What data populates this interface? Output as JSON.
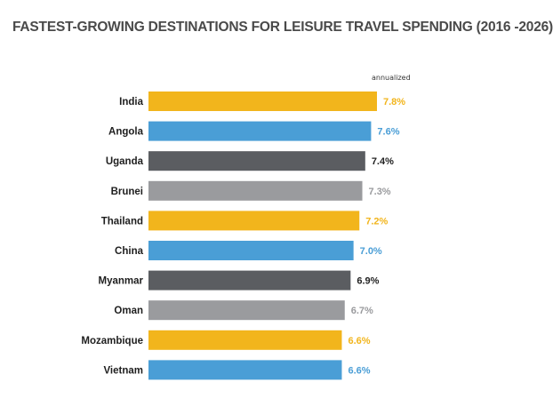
{
  "chart_data": {
    "type": "bar",
    "orientation": "horizontal",
    "title": "FASTEST-GROWING DESTINATIONS FOR LEISURE TRAVEL SPENDING (2016 -2026)",
    "note": "annualized",
    "categories": [
      "India",
      "Angola",
      "Uganda",
      "Brunei",
      "Thailand",
      "China",
      "Myanmar",
      "Oman",
      "Mozambique",
      "Vietnam"
    ],
    "values": [
      7.8,
      7.6,
      7.4,
      7.3,
      7.2,
      7.0,
      6.9,
      6.7,
      6.6,
      6.6
    ],
    "labels": [
      "7.8%",
      "7.6%",
      "7.4%",
      "7.3%",
      "7.2%",
      "7.0%",
      "6.9%",
      "6.7%",
      "6.6%",
      "6.6%"
    ],
    "colors": [
      "#f2b51c",
      "#4a9ed6",
      "#5b5d61",
      "#9a9b9e",
      "#f2b51c",
      "#4a9ed6",
      "#5b5d61",
      "#9a9b9e",
      "#f2b51c",
      "#4a9ed6"
    ],
    "label_colors": [
      "#f2b51c",
      "#4a9ed6",
      "#222222",
      "#9a9b9e",
      "#f2b51c",
      "#4a9ed6",
      "#222222",
      "#9a9b9e",
      "#f2b51c",
      "#4a9ed6"
    ],
    "xlim": [
      0,
      7.8
    ],
    "grid": false,
    "legend": "none"
  }
}
